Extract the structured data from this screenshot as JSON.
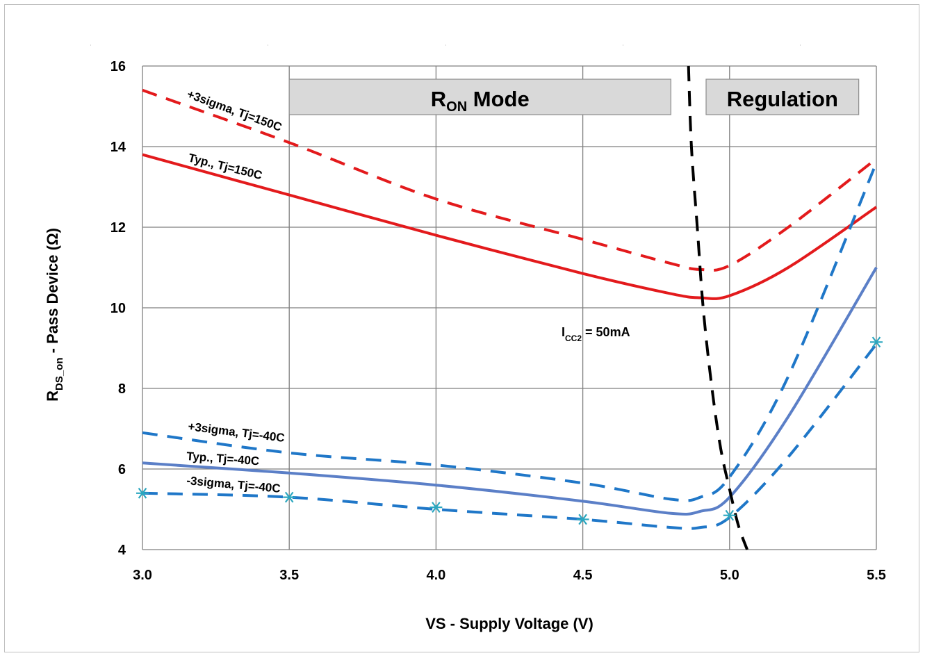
{
  "chart_data": {
    "type": "line",
    "xlabel": "VS - Supply Voltage (V)",
    "ylabel": {
      "main": "R",
      "sub": "DS_on",
      "rest": " - Pass Device (Ω)"
    },
    "xlim": [
      3.0,
      5.5
    ],
    "ylim": [
      4,
      16
    ],
    "xticks": [
      "3.0",
      "3.5",
      "4.0",
      "4.5",
      "5.0",
      "5.5"
    ],
    "yticks": [
      "4",
      "6",
      "8",
      "10",
      "12",
      "14",
      "16"
    ],
    "grid": true,
    "regions": [
      {
        "main": "R",
        "sub": "ON",
        "rest": " Mode",
        "x_start": 3.5,
        "x_end": 4.8
      },
      {
        "main": "Regulation",
        "sub": "",
        "rest": "",
        "x_start": 4.92,
        "x_end": 5.44
      }
    ],
    "series": [
      {
        "name": "+3sigma, Tj=150C",
        "color": "#e31a1c",
        "dash": true,
        "marker": false,
        "x": [
          3.0,
          3.5,
          4.0,
          4.5,
          4.8,
          4.9,
          5.0,
          5.2,
          5.5
        ],
        "y": [
          15.4,
          14.1,
          12.7,
          11.7,
          11.1,
          10.95,
          11.05,
          12.0,
          13.7
        ]
      },
      {
        "name": "Typ., Tj=150C",
        "color": "#e31a1c",
        "dash": false,
        "marker": false,
        "x": [
          3.0,
          3.5,
          4.0,
          4.5,
          4.8,
          4.9,
          5.0,
          5.2,
          5.5
        ],
        "y": [
          13.8,
          12.8,
          11.8,
          10.85,
          10.35,
          10.25,
          10.3,
          11.0,
          12.5
        ]
      },
      {
        "name": "+3sigma, Tj=-40C",
        "color": "#1f77c8",
        "dash": true,
        "marker": false,
        "x": [
          3.0,
          3.5,
          4.0,
          4.5,
          4.8,
          4.9,
          5.0,
          5.2,
          5.5
        ],
        "y": [
          6.9,
          6.4,
          6.1,
          5.65,
          5.25,
          5.3,
          5.8,
          8.3,
          13.6
        ]
      },
      {
        "name": "Typ., Tj=-40C",
        "color": "#5b7fc7",
        "dash": false,
        "marker": false,
        "x": [
          3.0,
          3.5,
          4.0,
          4.5,
          4.8,
          4.9,
          5.0,
          5.2,
          5.5
        ],
        "y": [
          6.15,
          5.9,
          5.6,
          5.2,
          4.9,
          4.95,
          5.3,
          7.3,
          11.0
        ]
      },
      {
        "name": "-3sigma, Tj=-40C",
        "color": "#1f77c8",
        "dash": true,
        "marker": false,
        "x": [
          3.0,
          3.5,
          4.0,
          4.5,
          4.8,
          4.9,
          5.0,
          5.2,
          5.5
        ],
        "y": [
          5.4,
          5.3,
          5.0,
          4.75,
          4.55,
          4.55,
          4.8,
          6.3,
          9.1
        ]
      },
      {
        "name": "",
        "color": "#000000",
        "dash": true,
        "marker": false,
        "x": [
          4.86,
          4.87,
          4.89,
          4.91,
          4.94,
          4.97,
          5.0,
          5.03,
          5.06
        ],
        "y": [
          16.0,
          14.0,
          12.0,
          10.0,
          8.0,
          6.5,
          5.5,
          4.6,
          4.0
        ]
      }
    ],
    "markers": {
      "color": "#2ba7c0",
      "x": [
        3.0,
        3.5,
        4.0,
        4.5,
        5.0,
        5.5
      ],
      "y": [
        5.4,
        5.3,
        5.05,
        4.75,
        4.85,
        9.15
      ]
    },
    "annotations": [
      {
        "main": "I",
        "sub": "CC2",
        "rest": " = 50mA"
      }
    ]
  }
}
